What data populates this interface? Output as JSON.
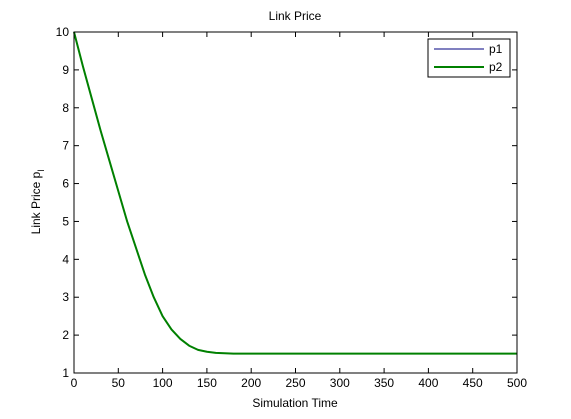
{
  "chart_data": {
    "type": "line",
    "title": "Link Price",
    "xlabel": "Simulation Time",
    "ylabel_main": "Link Price p",
    "ylabel_sub": "l",
    "xlim": [
      0,
      500
    ],
    "ylim": [
      1,
      10
    ],
    "xticks": [
      0,
      50,
      100,
      150,
      200,
      250,
      300,
      350,
      400,
      450,
      500
    ],
    "yticks": [
      1,
      2,
      3,
      4,
      5,
      6,
      7,
      8,
      9,
      10
    ],
    "grid": false,
    "legend_position": "top-right",
    "series": [
      {
        "name": "p1",
        "color": "#000080",
        "x": [
          0,
          10,
          20,
          30,
          40,
          50,
          60,
          70,
          80,
          90,
          100,
          110,
          120,
          130,
          140,
          150,
          160,
          170,
          180,
          190,
          200,
          250,
          300,
          350,
          400,
          450,
          500
        ],
        "y": [
          10.0,
          9.1,
          8.25,
          7.4,
          6.6,
          5.8,
          5.0,
          4.3,
          3.6,
          3.0,
          2.5,
          2.15,
          1.9,
          1.72,
          1.61,
          1.56,
          1.53,
          1.52,
          1.51,
          1.51,
          1.51,
          1.51,
          1.51,
          1.51,
          1.51,
          1.51,
          1.51
        ]
      },
      {
        "name": "p2",
        "color": "#008000",
        "x": [
          0,
          10,
          20,
          30,
          40,
          50,
          60,
          70,
          80,
          90,
          100,
          110,
          120,
          130,
          140,
          150,
          160,
          170,
          180,
          190,
          200,
          250,
          300,
          350,
          400,
          450,
          500
        ],
        "y": [
          10.0,
          9.1,
          8.25,
          7.4,
          6.6,
          5.8,
          5.0,
          4.3,
          3.6,
          3.0,
          2.5,
          2.15,
          1.9,
          1.72,
          1.61,
          1.56,
          1.53,
          1.52,
          1.51,
          1.51,
          1.51,
          1.51,
          1.51,
          1.51,
          1.51,
          1.51,
          1.51
        ]
      }
    ]
  }
}
